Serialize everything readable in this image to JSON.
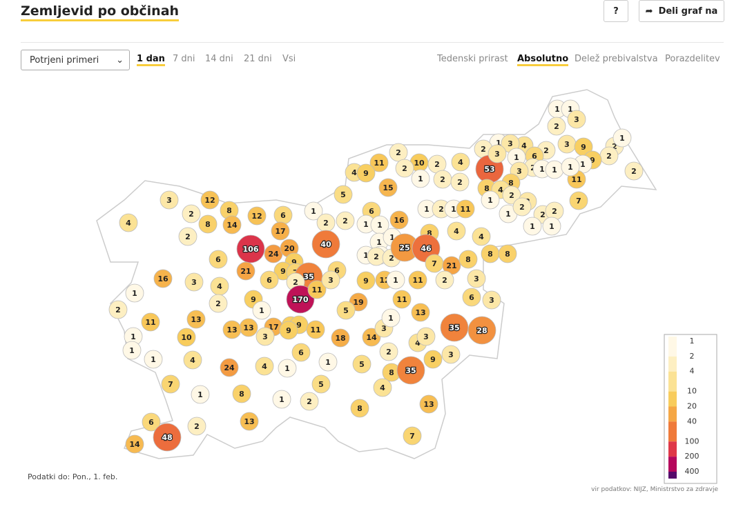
{
  "header": {
    "title": "Zemljevid po občinah",
    "help": "?",
    "share": "Deli graf na"
  },
  "controls": {
    "select": "Potrjeni primeri",
    "periods": [
      "1 dan",
      "7 dni",
      "14 dni",
      "21 dni",
      "Vsi"
    ],
    "active_period": 0,
    "modes": [
      "Tedenski prirast",
      "Absolutno",
      "Delež prebivalstva",
      "Porazdelitev"
    ],
    "active_mode": 1
  },
  "map": {
    "values": [
      1,
      1,
      3,
      2,
      3,
      9,
      2,
      1,
      2,
      9,
      1,
      2,
      11,
      7,
      4,
      2,
      6,
      2,
      1,
      1,
      1,
      1,
      3,
      2,
      1,
      3,
      53,
      3,
      8,
      8,
      4,
      2,
      3,
      1,
      1,
      2,
      2,
      1,
      1,
      2,
      2,
      11,
      10,
      2,
      2,
      4,
      4,
      9,
      1,
      2,
      2,
      15,
      5,
      1,
      2,
      2,
      6,
      1,
      1,
      16,
      1,
      2,
      1,
      11,
      8,
      4,
      4,
      1,
      1,
      1,
      1,
      2,
      2,
      25,
      46,
      7,
      21,
      8,
      8,
      8,
      3,
      4,
      2,
      2,
      12,
      8,
      8,
      14,
      12,
      6,
      17,
      106,
      24,
      20,
      40,
      9,
      9,
      7,
      35,
      2,
      6,
      21,
      6,
      16,
      3,
      4,
      2,
      1,
      2,
      11,
      1,
      1,
      1,
      170,
      11,
      6,
      3,
      19,
      5,
      9,
      12,
      1,
      11,
      2,
      3,
      6,
      3,
      11,
      13,
      9,
      1,
      17,
      9,
      9,
      11,
      9,
      13,
      13,
      3,
      13,
      10,
      4,
      7,
      24,
      4,
      1,
      6,
      1,
      18,
      14,
      3,
      1,
      2,
      5,
      8,
      4,
      35,
      4,
      3,
      9,
      3,
      35,
      28,
      13,
      8,
      7,
      5,
      2,
      1,
      8,
      13,
      1,
      2,
      6,
      48,
      14
    ],
    "legend": {
      "ticks": [
        1,
        2,
        4,
        10,
        20,
        40,
        100,
        200,
        400
      ],
      "colors": [
        "#fff8e6",
        "#fdefc2",
        "#fbe294",
        "#f8cc5c",
        "#f5a745",
        "#ef7a3a",
        "#df3848",
        "#b5075c",
        "#560a6b"
      ]
    }
  },
  "footer": {
    "date": "Podatki do: Pon., 1. feb.",
    "source": "vir podatkov: NIJZ, Ministrstvo za zdravje"
  }
}
